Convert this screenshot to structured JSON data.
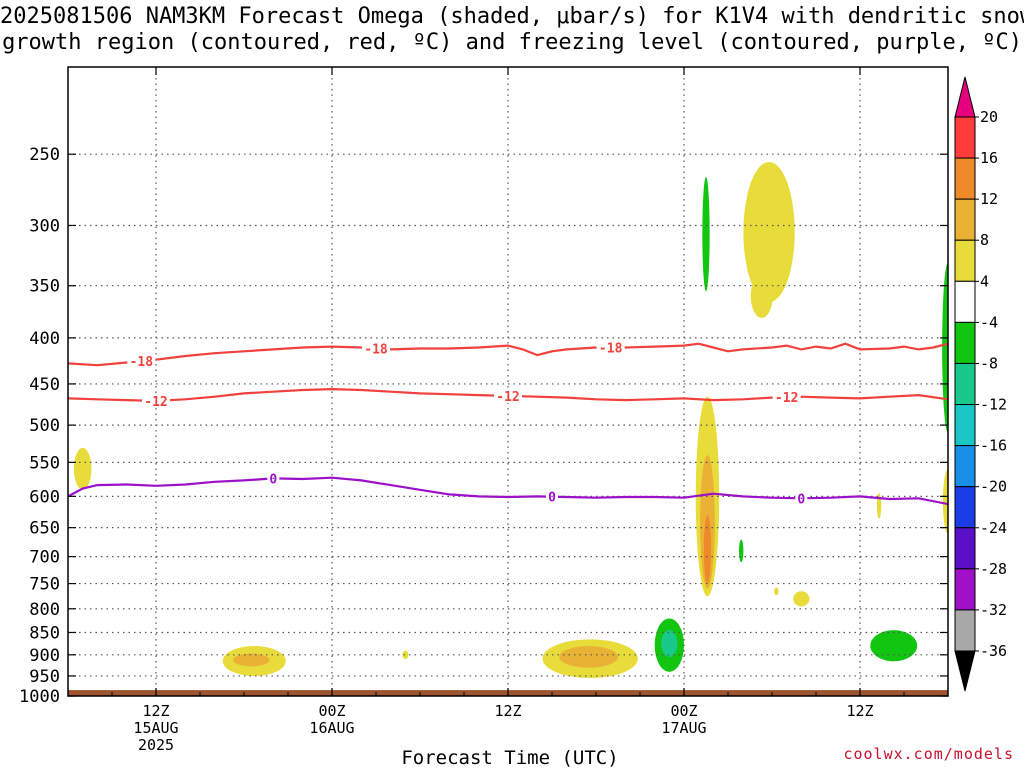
{
  "title": {
    "line1": "2025081506 NAM3KM Forecast Omega (shaded, μbar/s) for K1V4 with dendritic snow",
    "line2": "growth region (contoured, red, ºC) and freezing level (contoured, purple, ºC)"
  },
  "credit": "coolwx.com/models",
  "chart_data": {
    "type": "heatmap",
    "title": "2025081506 NAM3KM Forecast Omega (shaded, μbar/s) for K1V4 with dendritic snow growth region (contoured, red, ºC) and freezing level (contoured, purple, ºC)",
    "xlabel": "Forecast Time (UTC)",
    "ylabel": "",
    "y_scale": "log-pressure (hPa)",
    "ylim": [
      1000,
      200
    ],
    "y_ticks": [
      250,
      300,
      350,
      400,
      450,
      500,
      550,
      600,
      650,
      700,
      750,
      800,
      850,
      900,
      950,
      1000
    ],
    "x_range_hours": [
      0,
      60
    ],
    "x_ticks": [
      {
        "hour": 6,
        "lines": [
          "12Z",
          "15AUG",
          "2025"
        ]
      },
      {
        "hour": 18,
        "lines": [
          "00Z",
          "16AUG"
        ]
      },
      {
        "hour": 30,
        "lines": [
          "12Z",
          ""
        ]
      },
      {
        "hour": 42,
        "lines": [
          "00Z",
          "17AUG"
        ]
      },
      {
        "hour": 54,
        "lines": [
          "12Z",
          ""
        ]
      }
    ],
    "grid": true,
    "colorbar": {
      "labels": [
        "20",
        "16",
        "12",
        "8",
        "4",
        "-4",
        "-8",
        "-12",
        "-16",
        "-20",
        "-24",
        "-28",
        "-32",
        "-36"
      ],
      "colors": [
        "#e6007e",
        "#ff3b3b",
        "#ee8a2a",
        "#e9b235",
        "#e8dc3a",
        "#ffffff",
        "#11c511",
        "#19c98c",
        "#1bc6c6",
        "#1a8fe8",
        "#1a3de6",
        "#5a10c8",
        "#a010c8",
        "#a8a8a8",
        "#000000"
      ]
    },
    "contours": [
      {
        "name": "-18",
        "color": "#f0413d",
        "points": [
          [
            0,
            427
          ],
          [
            2,
            429
          ],
          [
            4,
            426
          ],
          [
            6,
            423
          ],
          [
            8,
            419
          ],
          [
            10,
            416
          ],
          [
            12,
            414
          ],
          [
            14,
            412
          ],
          [
            16,
            410
          ],
          [
            18,
            409
          ],
          [
            20,
            410
          ],
          [
            22,
            412
          ],
          [
            24,
            411
          ],
          [
            26,
            411
          ],
          [
            28,
            410
          ],
          [
            30,
            408
          ],
          [
            31,
            412
          ],
          [
            32,
            418
          ],
          [
            33,
            414
          ],
          [
            34,
            412
          ],
          [
            36,
            410
          ],
          [
            38,
            410
          ],
          [
            40,
            409
          ],
          [
            42,
            408
          ],
          [
            43,
            406
          ],
          [
            44,
            410
          ],
          [
            45,
            414
          ],
          [
            46,
            412
          ],
          [
            48,
            410
          ],
          [
            49,
            408
          ],
          [
            50,
            412
          ],
          [
            51,
            409
          ],
          [
            52,
            411
          ],
          [
            53,
            406
          ],
          [
            54,
            412
          ],
          [
            56,
            411
          ],
          [
            57,
            409
          ],
          [
            58,
            412
          ],
          [
            59,
            410
          ],
          [
            60,
            406
          ]
        ],
        "labels": [
          {
            "hour": 5,
            "text": "-18"
          },
          {
            "hour": 21,
            "text": "-18"
          },
          {
            "hour": 37,
            "text": "-18"
          }
        ]
      },
      {
        "name": "-12",
        "color": "#f0413d",
        "points": [
          [
            0,
            467
          ],
          [
            2,
            468
          ],
          [
            4,
            469
          ],
          [
            6,
            470
          ],
          [
            8,
            468
          ],
          [
            10,
            465
          ],
          [
            12,
            461
          ],
          [
            14,
            459
          ],
          [
            16,
            457
          ],
          [
            18,
            456
          ],
          [
            20,
            457
          ],
          [
            22,
            459
          ],
          [
            24,
            461
          ],
          [
            26,
            462
          ],
          [
            28,
            463
          ],
          [
            30,
            464
          ],
          [
            32,
            465
          ],
          [
            34,
            466
          ],
          [
            36,
            468
          ],
          [
            38,
            469
          ],
          [
            40,
            468
          ],
          [
            42,
            467
          ],
          [
            44,
            469
          ],
          [
            46,
            468
          ],
          [
            48,
            466
          ],
          [
            50,
            465
          ],
          [
            52,
            466
          ],
          [
            54,
            467
          ],
          [
            56,
            465
          ],
          [
            58,
            463
          ],
          [
            60,
            468
          ]
        ],
        "labels": [
          {
            "hour": 6,
            "text": "-12"
          },
          {
            "hour": 30,
            "text": "-12"
          },
          {
            "hour": 49,
            "text": "-12"
          }
        ]
      },
      {
        "name": "0",
        "color": "#9b10c8",
        "points": [
          [
            0,
            600
          ],
          [
            1,
            588
          ],
          [
            2,
            583
          ],
          [
            4,
            582
          ],
          [
            6,
            584
          ],
          [
            8,
            582
          ],
          [
            10,
            578
          ],
          [
            12,
            576
          ],
          [
            14,
            573
          ],
          [
            16,
            574
          ],
          [
            18,
            572
          ],
          [
            20,
            576
          ],
          [
            22,
            583
          ],
          [
            24,
            590
          ],
          [
            26,
            597
          ],
          [
            28,
            600
          ],
          [
            30,
            601
          ],
          [
            32,
            600
          ],
          [
            34,
            601
          ],
          [
            36,
            602
          ],
          [
            38,
            601
          ],
          [
            40,
            601
          ],
          [
            42,
            602
          ],
          [
            44,
            596
          ],
          [
            46,
            600
          ],
          [
            48,
            602
          ],
          [
            50,
            603
          ],
          [
            52,
            602
          ],
          [
            54,
            600
          ],
          [
            56,
            604
          ],
          [
            58,
            603
          ],
          [
            60,
            612
          ]
        ],
        "labels": [
          {
            "hour": 14,
            "text": "0"
          },
          {
            "hour": 33,
            "text": "0"
          },
          {
            "hour": 50,
            "text": "0"
          }
        ]
      }
    ],
    "omega_regions": [
      {
        "value_band": "4 to 8",
        "color": "#e8dc3a",
        "center": [
          1,
          560
        ],
        "size": [
          1.2,
          60
        ]
      },
      {
        "value_band": "4 to 8",
        "color": "#e8dc3a",
        "center": [
          12.7,
          915
        ],
        "size": [
          4.3,
          70
        ]
      },
      {
        "value_band": "8 to 12",
        "color": "#e9b235",
        "center": [
          12.5,
          912
        ],
        "size": [
          2.5,
          30
        ]
      },
      {
        "value_band": "4 to 8",
        "color": "#e8dc3a",
        "center": [
          23,
          900
        ],
        "size": [
          0.4,
          20
        ]
      },
      {
        "value_band": "4 to 8",
        "color": "#e8dc3a",
        "center": [
          35.6,
          910
        ],
        "size": [
          6.5,
          90
        ]
      },
      {
        "value_band": "8 to 12",
        "color": "#e9b235",
        "center": [
          35.5,
          905
        ],
        "size": [
          4,
          50
        ]
      },
      {
        "value_band": "-4 to -8",
        "color": "#11c511",
        "center": [
          41,
          880
        ],
        "size": [
          2,
          120
        ]
      },
      {
        "value_band": "-8 to -12",
        "color": "#19c98c",
        "center": [
          41,
          875
        ],
        "size": [
          1.1,
          60
        ]
      },
      {
        "value_band": "4 to 8",
        "color": "#e8dc3a",
        "center": [
          43.6,
          620
        ],
        "size": [
          1.6,
          310
        ]
      },
      {
        "value_band": "8 to 12",
        "color": "#e9b235",
        "center": [
          43.6,
          650
        ],
        "size": [
          1.0,
          220
        ]
      },
      {
        "value_band": "12 to 16",
        "color": "#ee8a2a",
        "center": [
          43.6,
          690
        ],
        "size": [
          0.5,
          120
        ]
      },
      {
        "value_band": "-4 to -8",
        "color": "#11c511",
        "center": [
          45.9,
          690
        ],
        "size": [
          0.3,
          40
        ]
      },
      {
        "value_band": "-4 to -8",
        "color": "#11c511",
        "center": [
          43.5,
          310
        ],
        "size": [
          0.5,
          90
        ]
      },
      {
        "value_band": "4 to 8",
        "color": "#e8dc3a",
        "center": [
          47.8,
          310
        ],
        "size": [
          3.5,
          110
        ]
      },
      {
        "value_band": "4 to 8",
        "color": "#e8dc3a",
        "center": [
          47.3,
          360
        ],
        "size": [
          1.5,
          40
        ]
      },
      {
        "value_band": "4 to 8",
        "color": "#e8dc3a",
        "center": [
          50,
          780
        ],
        "size": [
          1.1,
          30
        ]
      },
      {
        "value_band": "4 to 8",
        "color": "#e8dc3a",
        "center": [
          48.3,
          765
        ],
        "size": [
          0.3,
          15
        ]
      },
      {
        "value_band": "-4 to -8",
        "color": "#11c511",
        "center": [
          56.3,
          880
        ],
        "size": [
          3.2,
          70
        ]
      },
      {
        "value_band": "4 to 8",
        "color": "#e8dc3a",
        "center": [
          55.3,
          615
        ],
        "size": [
          0.3,
          40
        ]
      },
      {
        "value_band": "-4 to -8",
        "color": "#11c511",
        "center": [
          60,
          420
        ],
        "size": [
          0.8,
          180
        ]
      },
      {
        "value_band": "4 to 8",
        "color": "#e8dc3a",
        "center": [
          60,
          610
        ],
        "size": [
          0.7,
          100
        ]
      }
    ],
    "terrain": {
      "color": "#9c5330",
      "top_hpa": 985
    }
  }
}
